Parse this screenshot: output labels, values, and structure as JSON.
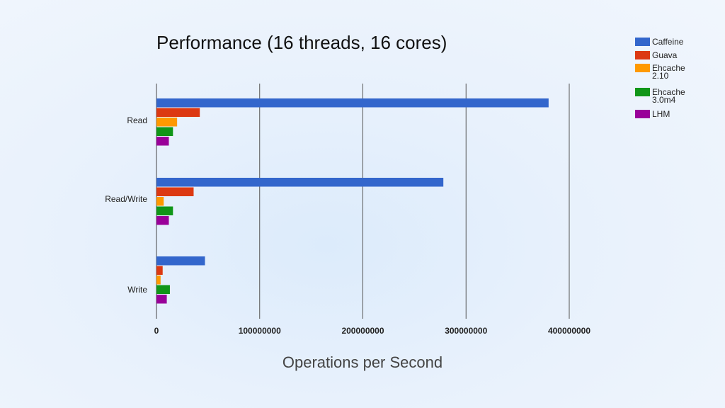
{
  "chart_data": {
    "type": "bar",
    "orientation": "horizontal",
    "title": "Performance (16 threads, 16 cores)",
    "xlabel": "Operations per Second",
    "ylabel": "",
    "categories": [
      "Read",
      "Read/Write",
      "Write"
    ],
    "series": [
      {
        "name": "Caffeine",
        "name_lines": [
          "Caffeine"
        ],
        "color": "#3366cc",
        "values": [
          380000000,
          278000000,
          47000000
        ]
      },
      {
        "name": "Guava",
        "name_lines": [
          "Guava"
        ],
        "color": "#dc3912",
        "values": [
          42000000,
          36000000,
          6000000
        ]
      },
      {
        "name": "Ehcache 2.10",
        "name_lines": [
          "Ehcache",
          "2.10"
        ],
        "color": "#ff9900",
        "values": [
          20000000,
          7000000,
          4000000
        ]
      },
      {
        "name": "Ehcache 3.0m4",
        "name_lines": [
          "Ehcache",
          "3.0m4"
        ],
        "color": "#109618",
        "values": [
          16000000,
          16000000,
          13000000
        ]
      },
      {
        "name": "LHM",
        "name_lines": [
          "LHM"
        ],
        "color": "#990099",
        "values": [
          12000000,
          12000000,
          10000000
        ]
      }
    ],
    "xlim": [
      0,
      400000000
    ],
    "xticks": [
      0,
      100000000,
      200000000,
      300000000,
      400000000
    ],
    "xtick_labels": [
      "0",
      "100000000",
      "200000000",
      "300000000",
      "400000000"
    ],
    "grid": true,
    "legend_position": "top-right"
  }
}
